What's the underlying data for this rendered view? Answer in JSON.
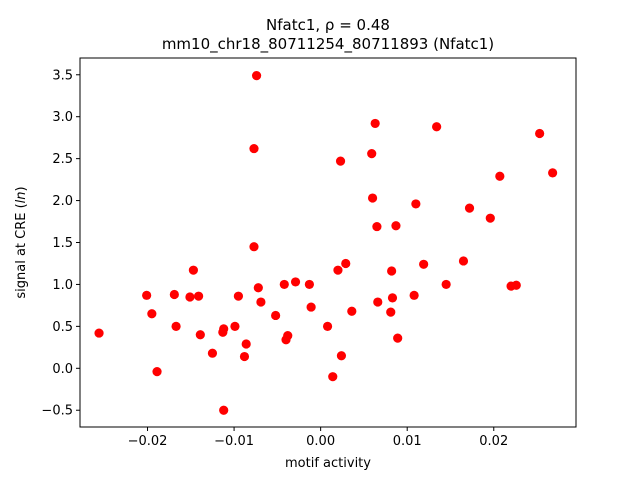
{
  "chart_data": {
    "type": "scatter",
    "title_line1": "Nfatc1, ρ = 0.48",
    "title_line2": "mm10_chr18_80711254_80711893 (Nfatc1)",
    "xlabel": "motif activity",
    "ylabel": "signal at CRE (ln)",
    "xlim": [
      -0.0278,
      0.0295
    ],
    "ylim": [
      -0.7,
      3.7
    ],
    "xticks": [
      -0.02,
      -0.01,
      0.0,
      0.01,
      0.02
    ],
    "xtick_labels": [
      "−0.02",
      "−0.01",
      "0.00",
      "0.01",
      "0.02"
    ],
    "yticks": [
      -0.5,
      0.0,
      0.5,
      1.0,
      1.5,
      2.0,
      2.5,
      3.0,
      3.5
    ],
    "ytick_labels": [
      "−0.5",
      "0.0",
      "0.5",
      "1.0",
      "1.5",
      "2.0",
      "2.5",
      "3.0",
      "3.5"
    ],
    "grid": false,
    "marker_color": "#ff0000",
    "points": [
      {
        "x": -0.0256,
        "y": 0.42
      },
      {
        "x": -0.0201,
        "y": 0.87
      },
      {
        "x": -0.0195,
        "y": 0.65
      },
      {
        "x": -0.0189,
        "y": -0.04
      },
      {
        "x": -0.0169,
        "y": 0.88
      },
      {
        "x": -0.0167,
        "y": 0.5
      },
      {
        "x": -0.0151,
        "y": 0.85
      },
      {
        "x": -0.0147,
        "y": 1.17
      },
      {
        "x": -0.0141,
        "y": 0.86
      },
      {
        "x": -0.0139,
        "y": 0.4
      },
      {
        "x": -0.0125,
        "y": 0.18
      },
      {
        "x": -0.0113,
        "y": 0.43
      },
      {
        "x": -0.0112,
        "y": 0.47
      },
      {
        "x": -0.0112,
        "y": -0.5
      },
      {
        "x": -0.0099,
        "y": 0.5
      },
      {
        "x": -0.0095,
        "y": 0.86
      },
      {
        "x": -0.0088,
        "y": 0.14
      },
      {
        "x": -0.0086,
        "y": 0.29
      },
      {
        "x": -0.0077,
        "y": 2.62
      },
      {
        "x": -0.0077,
        "y": 1.45
      },
      {
        "x": -0.0074,
        "y": 3.49
      },
      {
        "x": -0.0072,
        "y": 0.96
      },
      {
        "x": -0.0069,
        "y": 0.79
      },
      {
        "x": -0.0052,
        "y": 0.63
      },
      {
        "x": -0.0042,
        "y": 1.0
      },
      {
        "x": -0.004,
        "y": 0.34
      },
      {
        "x": -0.0038,
        "y": 0.39
      },
      {
        "x": -0.0029,
        "y": 1.03
      },
      {
        "x": -0.0013,
        "y": 1.0
      },
      {
        "x": -0.0011,
        "y": 0.73
      },
      {
        "x": 0.0008,
        "y": 0.5
      },
      {
        "x": 0.0014,
        "y": -0.1
      },
      {
        "x": 0.002,
        "y": 1.17
      },
      {
        "x": 0.0023,
        "y": 2.47
      },
      {
        "x": 0.0024,
        "y": 0.15
      },
      {
        "x": 0.0029,
        "y": 1.25
      },
      {
        "x": 0.0036,
        "y": 0.68
      },
      {
        "x": 0.0059,
        "y": 2.56
      },
      {
        "x": 0.006,
        "y": 2.03
      },
      {
        "x": 0.0063,
        "y": 2.92
      },
      {
        "x": 0.0065,
        "y": 1.69
      },
      {
        "x": 0.0066,
        "y": 0.79
      },
      {
        "x": 0.0081,
        "y": 0.67
      },
      {
        "x": 0.0082,
        "y": 1.16
      },
      {
        "x": 0.0083,
        "y": 0.84
      },
      {
        "x": 0.0087,
        "y": 1.7
      },
      {
        "x": 0.0089,
        "y": 0.36
      },
      {
        "x": 0.0108,
        "y": 0.87
      },
      {
        "x": 0.011,
        "y": 1.96
      },
      {
        "x": 0.0119,
        "y": 1.24
      },
      {
        "x": 0.0134,
        "y": 2.88
      },
      {
        "x": 0.0145,
        "y": 1.0
      },
      {
        "x": 0.0165,
        "y": 1.28
      },
      {
        "x": 0.0172,
        "y": 1.91
      },
      {
        "x": 0.0196,
        "y": 1.79
      },
      {
        "x": 0.0207,
        "y": 2.29
      },
      {
        "x": 0.022,
        "y": 0.98
      },
      {
        "x": 0.0226,
        "y": 0.99
      },
      {
        "x": 0.0253,
        "y": 2.8
      },
      {
        "x": 0.0268,
        "y": 2.33
      }
    ]
  }
}
